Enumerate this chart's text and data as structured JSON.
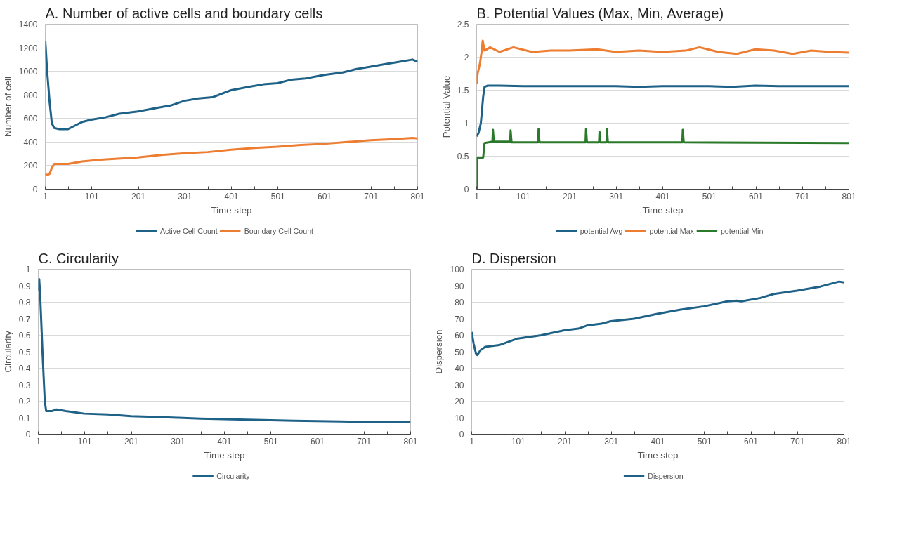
{
  "chart_data": [
    {
      "type": "line",
      "title": "A. Number of active cells and boundary cells",
      "xlabel": "Time step",
      "ylabel": "Number of cell",
      "xlim": [
        1,
        801
      ],
      "ylim": [
        0,
        1400
      ],
      "xticks": [
        1,
        {
          "value": 51,
          "label": null
        },
        101,
        {
          "value": 151,
          "label": null
        },
        201,
        {
          "value": 251,
          "label": null
        },
        301,
        {
          "value": 351,
          "label": null
        },
        401,
        {
          "value": 451,
          "label": null
        },
        501,
        {
          "value": 551,
          "label": null
        },
        601,
        {
          "value": 651,
          "label": null
        },
        701,
        {
          "value": 751,
          "label": null
        },
        801
      ],
      "yticks": [
        0,
        200,
        400,
        600,
        800,
        1000,
        1200,
        1400
      ],
      "grid": "y",
      "legend": "bottom",
      "marker": "none",
      "line_style": "solid",
      "series": [
        {
          "name": "Active Cell Count",
          "color": "#1f6288",
          "x": [
            1,
            5,
            10,
            15,
            20,
            30,
            50,
            60,
            80,
            100,
            130,
            160,
            200,
            240,
            270,
            300,
            330,
            360,
            400,
            440,
            470,
            500,
            530,
            560,
            600,
            640,
            670,
            700,
            730,
            760,
            790,
            801
          ],
          "values": [
            1260,
            1000,
            750,
            560,
            520,
            510,
            510,
            530,
            570,
            590,
            610,
            640,
            660,
            690,
            710,
            750,
            770,
            780,
            840,
            870,
            890,
            900,
            930,
            940,
            970,
            990,
            1020,
            1040,
            1060,
            1080,
            1100,
            1080
          ]
        },
        {
          "name": "Boundary Cell Count",
          "color": "#ed7d31",
          "x": [
            1,
            5,
            10,
            15,
            20,
            50,
            80,
            120,
            200,
            250,
            300,
            350,
            400,
            450,
            500,
            550,
            600,
            650,
            700,
            750,
            790,
            801
          ],
          "values": [
            130,
            120,
            130,
            180,
            215,
            215,
            235,
            250,
            270,
            290,
            305,
            315,
            335,
            350,
            360,
            375,
            385,
            400,
            415,
            425,
            435,
            430
          ]
        }
      ]
    },
    {
      "type": "line",
      "title": "B. Potential Values (Max, Min, Average)",
      "xlabel": "Time step",
      "ylabel": "Potential Value",
      "xlim": [
        1,
        801
      ],
      "ylim": [
        0,
        2.5
      ],
      "xticks": [
        1,
        {
          "value": 51,
          "label": null
        },
        101,
        {
          "value": 151,
          "label": null
        },
        201,
        {
          "value": 251,
          "label": null
        },
        301,
        {
          "value": 351,
          "label": null
        },
        401,
        {
          "value": 451,
          "label": null
        },
        501,
        {
          "value": 551,
          "label": null
        },
        601,
        {
          "value": 651,
          "label": null
        },
        701,
        {
          "value": 751,
          "label": null
        },
        801
      ],
      "yticks": [
        0,
        0.5,
        1,
        1.5,
        2,
        2.5
      ],
      "grid": "y",
      "legend": "bottom",
      "marker": "none",
      "line_style": "solid",
      "series": [
        {
          "name": "potential Avg",
          "color": "#1f6288",
          "x": [
            1,
            5,
            10,
            15,
            18,
            25,
            50,
            100,
            150,
            200,
            250,
            300,
            350,
            400,
            450,
            500,
            550,
            600,
            650,
            700,
            750,
            801
          ],
          "values": [
            0.8,
            0.85,
            1.0,
            1.4,
            1.55,
            1.57,
            1.57,
            1.56,
            1.56,
            1.56,
            1.56,
            1.56,
            1.55,
            1.56,
            1.56,
            1.56,
            1.55,
            1.57,
            1.56,
            1.56,
            1.56,
            1.56
          ]
        },
        {
          "name": "potential Max",
          "color": "#ed7d31",
          "x": [
            1,
            3,
            8,
            12,
            14,
            18,
            30,
            50,
            80,
            120,
            160,
            200,
            260,
            300,
            350,
            400,
            450,
            480,
            520,
            560,
            600,
            640,
            680,
            720,
            760,
            801
          ],
          "values": [
            1.6,
            1.75,
            1.9,
            2.1,
            2.25,
            2.1,
            2.15,
            2.08,
            2.15,
            2.08,
            2.1,
            2.1,
            2.12,
            2.08,
            2.1,
            2.08,
            2.1,
            2.15,
            2.08,
            2.05,
            2.12,
            2.1,
            2.05,
            2.1,
            2.08,
            2.07
          ]
        },
        {
          "name": "potential Min",
          "color": "#2b7a2b",
          "x": [
            1,
            2,
            15,
            18,
            35,
            36,
            38,
            73,
            74,
            76,
            133,
            134,
            136,
            235,
            236,
            238,
            264,
            265,
            267,
            280,
            281,
            283,
            443,
            444,
            446,
            801
          ],
          "values": [
            0,
            0.48,
            0.48,
            0.7,
            0.72,
            0.9,
            0.72,
            0.72,
            0.89,
            0.71,
            0.71,
            0.91,
            0.71,
            0.71,
            0.91,
            0.71,
            0.71,
            0.87,
            0.71,
            0.71,
            0.91,
            0.71,
            0.71,
            0.9,
            0.71,
            0.7
          ]
        }
      ]
    },
    {
      "type": "line",
      "title": "C. Circularity",
      "xlabel": "Time step",
      "ylabel": "Circularity",
      "xlim": [
        1,
        801
      ],
      "ylim": [
        0,
        1
      ],
      "xticks": [
        1,
        {
          "value": 51,
          "label": null
        },
        101,
        {
          "value": 151,
          "label": null
        },
        201,
        {
          "value": 251,
          "label": null
        },
        301,
        {
          "value": 351,
          "label": null
        },
        401,
        {
          "value": 451,
          "label": null
        },
        501,
        {
          "value": 551,
          "label": null
        },
        601,
        {
          "value": 651,
          "label": null
        },
        701,
        {
          "value": 751,
          "label": null
        },
        801
      ],
      "yticks": [
        0,
        0.1,
        0.2,
        0.3,
        0.4,
        0.5,
        0.6,
        0.7,
        0.8,
        0.9,
        1
      ],
      "grid": "y",
      "legend": "bottom",
      "marker": "none",
      "line_style": "solid",
      "series": [
        {
          "name": "Circularity",
          "color": "#1f6288",
          "x": [
            1,
            3,
            5,
            10,
            15,
            18,
            30,
            40,
            60,
            100,
            150,
            200,
            250,
            300,
            350,
            400,
            450,
            500,
            550,
            600,
            650,
            700,
            750,
            801
          ],
          "values": [
            0.87,
            0.94,
            0.85,
            0.5,
            0.2,
            0.14,
            0.14,
            0.15,
            0.14,
            0.125,
            0.12,
            0.11,
            0.105,
            0.1,
            0.095,
            0.092,
            0.088,
            0.085,
            0.082,
            0.08,
            0.078,
            0.075,
            0.073,
            0.072
          ]
        }
      ]
    },
    {
      "type": "line",
      "title": "D. Dispersion",
      "xlabel": "Time step",
      "ylabel": "Dispersion",
      "xlim": [
        1,
        801
      ],
      "ylim": [
        0,
        100
      ],
      "xticks": [
        1,
        {
          "value": 51,
          "label": null
        },
        101,
        {
          "value": 151,
          "label": null
        },
        201,
        {
          "value": 251,
          "label": null
        },
        301,
        {
          "value": 351,
          "label": null
        },
        401,
        {
          "value": 451,
          "label": null
        },
        501,
        {
          "value": 551,
          "label": null
        },
        601,
        {
          "value": 651,
          "label": null
        },
        701,
        {
          "value": 751,
          "label": null
        },
        801
      ],
      "yticks": [
        0,
        10,
        20,
        30,
        40,
        50,
        60,
        70,
        80,
        90,
        100
      ],
      "grid": "y",
      "legend": "bottom",
      "marker": "none",
      "line_style": "solid",
      "series": [
        {
          "name": "Dispersion",
          "color": "#1f6288",
          "x": [
            1,
            5,
            10,
            13,
            20,
            30,
            60,
            80,
            100,
            150,
            200,
            230,
            250,
            280,
            300,
            350,
            400,
            450,
            500,
            550,
            570,
            580,
            620,
            650,
            700,
            750,
            790,
            801
          ],
          "values": [
            62,
            55,
            49,
            48,
            51,
            53,
            54,
            56,
            58,
            60,
            63,
            64,
            66,
            67,
            68.5,
            70,
            73,
            75.5,
            77.5,
            80.5,
            81,
            80.5,
            82.5,
            85,
            87,
            89.5,
            92.5,
            92
          ]
        }
      ]
    }
  ]
}
